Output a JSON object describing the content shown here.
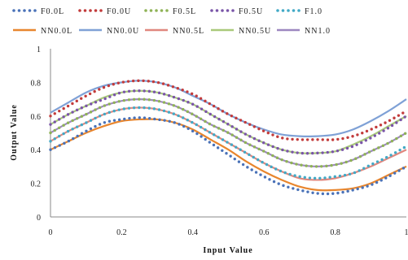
{
  "chart_data": {
    "type": "line",
    "xlabel": "Input Value",
    "ylabel": "Output Value",
    "xlim": [
      0,
      1
    ],
    "ylim": [
      0,
      1
    ],
    "x_ticks": [
      "0",
      "0.2",
      "0.4",
      "0.6",
      "0.8",
      "1"
    ],
    "y_ticks": [
      "0",
      "0.2",
      "0.4",
      "0.6",
      "0.8",
      "1"
    ],
    "grid": false,
    "legend_position": "top",
    "x": [
      0,
      0.05,
      0.1,
      0.15,
      0.2,
      0.25,
      0.3,
      0.35,
      0.4,
      0.45,
      0.5,
      0.55,
      0.6,
      0.65,
      0.7,
      0.75,
      0.8,
      0.85,
      0.9,
      0.95,
      1.0
    ],
    "series": [
      {
        "name": "F0.0L",
        "style": "dotted",
        "color": "#4a72b8",
        "values": [
          0.4,
          0.45,
          0.51,
          0.56,
          0.58,
          0.59,
          0.58,
          0.56,
          0.51,
          0.44,
          0.37,
          0.3,
          0.24,
          0.19,
          0.16,
          0.14,
          0.14,
          0.16,
          0.19,
          0.24,
          0.3
        ]
      },
      {
        "name": "F0.0U",
        "style": "dotted",
        "color": "#c23b3b",
        "values": [
          0.6,
          0.66,
          0.72,
          0.77,
          0.8,
          0.81,
          0.8,
          0.77,
          0.73,
          0.67,
          0.61,
          0.56,
          0.51,
          0.47,
          0.46,
          0.46,
          0.46,
          0.48,
          0.52,
          0.57,
          0.63
        ]
      },
      {
        "name": "F0.5L",
        "style": "dotted",
        "color": "#8fb356",
        "values": [
          0.5,
          0.56,
          0.61,
          0.66,
          0.69,
          0.7,
          0.69,
          0.66,
          0.61,
          0.55,
          0.5,
          0.44,
          0.39,
          0.34,
          0.31,
          0.3,
          0.31,
          0.34,
          0.39,
          0.44,
          0.5
        ]
      },
      {
        "name": "F0.5U",
        "style": "dotted",
        "color": "#7a55a8",
        "values": [
          0.55,
          0.61,
          0.66,
          0.7,
          0.74,
          0.75,
          0.74,
          0.71,
          0.67,
          0.61,
          0.55,
          0.49,
          0.44,
          0.4,
          0.38,
          0.38,
          0.39,
          0.42,
          0.47,
          0.53,
          0.6
        ]
      },
      {
        "name": "F1.0",
        "style": "dotted",
        "color": "#42a9c6",
        "values": [
          0.45,
          0.51,
          0.56,
          0.61,
          0.64,
          0.65,
          0.64,
          0.61,
          0.56,
          0.5,
          0.44,
          0.38,
          0.32,
          0.27,
          0.24,
          0.23,
          0.24,
          0.26,
          0.31,
          0.36,
          0.42
        ]
      },
      {
        "name": "NN0.0L",
        "style": "solid",
        "color": "#e8862e",
        "values": [
          0.4,
          0.45,
          0.5,
          0.54,
          0.57,
          0.58,
          0.58,
          0.56,
          0.52,
          0.46,
          0.4,
          0.33,
          0.27,
          0.22,
          0.18,
          0.16,
          0.16,
          0.17,
          0.2,
          0.25,
          0.3
        ]
      },
      {
        "name": "NN0.0U",
        "style": "solid",
        "color": "#7fa1d6",
        "values": [
          0.62,
          0.68,
          0.74,
          0.78,
          0.8,
          0.81,
          0.8,
          0.77,
          0.72,
          0.67,
          0.61,
          0.56,
          0.52,
          0.49,
          0.48,
          0.48,
          0.49,
          0.52,
          0.57,
          0.63,
          0.7
        ]
      },
      {
        "name": "NN0.5L",
        "style": "solid",
        "color": "#e0877e",
        "values": [
          0.45,
          0.51,
          0.56,
          0.61,
          0.64,
          0.65,
          0.64,
          0.61,
          0.56,
          0.5,
          0.44,
          0.38,
          0.32,
          0.27,
          0.23,
          0.22,
          0.23,
          0.26,
          0.3,
          0.35,
          0.4
        ]
      },
      {
        "name": "NN0.5U",
        "style": "solid",
        "color": "#a9c97a",
        "values": [
          0.55,
          0.61,
          0.66,
          0.71,
          0.74,
          0.75,
          0.74,
          0.71,
          0.67,
          0.61,
          0.55,
          0.49,
          0.44,
          0.4,
          0.38,
          0.38,
          0.39,
          0.43,
          0.48,
          0.54,
          0.6
        ]
      },
      {
        "name": "NN1.0",
        "style": "solid",
        "color": "#9d87c0",
        "values": [
          0.5,
          0.56,
          0.61,
          0.66,
          0.69,
          0.7,
          0.69,
          0.66,
          0.61,
          0.55,
          0.5,
          0.44,
          0.39,
          0.34,
          0.31,
          0.3,
          0.31,
          0.34,
          0.39,
          0.44,
          0.5
        ]
      }
    ]
  }
}
